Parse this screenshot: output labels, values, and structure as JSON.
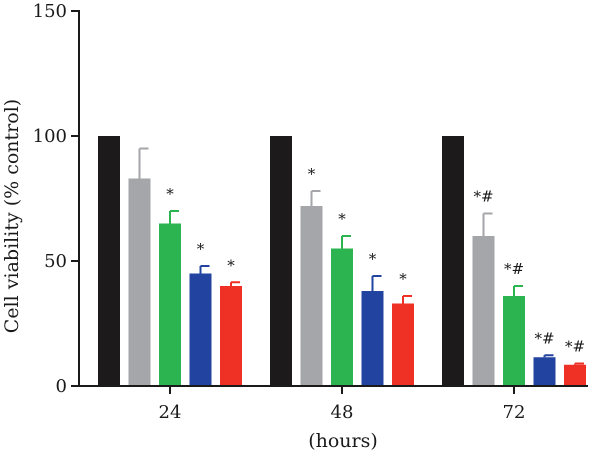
{
  "chart_data": {
    "type": "bar",
    "title": "",
    "xlabel": "(hours)",
    "ylabel": "Cell viability (% control)",
    "ylim": [
      0,
      150
    ],
    "yticks": [
      0,
      50,
      100,
      150
    ],
    "categories": [
      "24",
      "48",
      "72"
    ],
    "series": [
      {
        "color": "#1c1a1b",
        "values": [
          100,
          100,
          100
        ],
        "errors": [
          0,
          0,
          0
        ],
        "annotations": [
          "",
          "",
          ""
        ]
      },
      {
        "color": "#a4a6a9",
        "values": [
          83,
          72,
          60
        ],
        "errors": [
          12,
          6,
          9
        ],
        "annotations": [
          "",
          "*",
          "*#"
        ]
      },
      {
        "color": "#2bb44f",
        "values": [
          65,
          55,
          36
        ],
        "errors": [
          5,
          5,
          4
        ],
        "annotations": [
          "*",
          "*",
          "*#"
        ]
      },
      {
        "color": "#2244a0",
        "values": [
          45,
          38,
          11.5
        ],
        "errors": [
          3,
          6,
          0.8
        ],
        "annotations": [
          "*",
          "*",
          "*#"
        ]
      },
      {
        "color": "#ee3124",
        "values": [
          40,
          33,
          8.5
        ],
        "errors": [
          1.5,
          3,
          0.5
        ],
        "annotations": [
          "*",
          "*",
          "*#"
        ]
      }
    ],
    "grid": false,
    "legend": "none"
  }
}
